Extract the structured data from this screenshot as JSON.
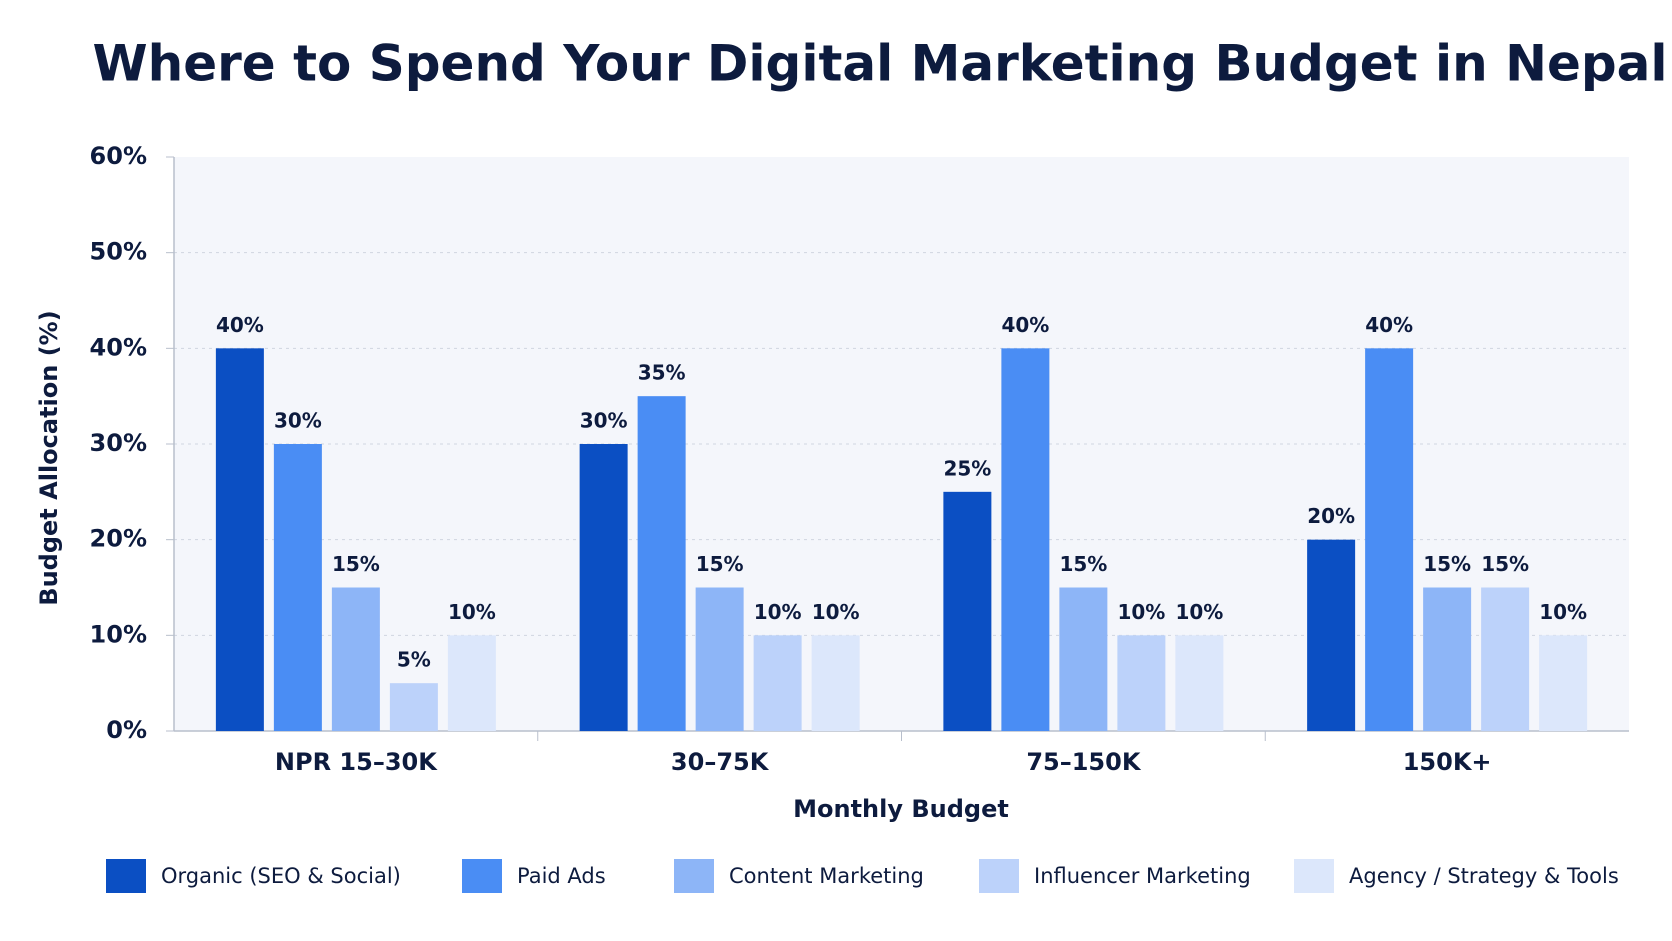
{
  "chart_data": {
    "type": "bar",
    "title": "Where to Spend Your Digital Marketing Budget in Nepal",
    "x_label": "Monthly Budget",
    "y_label": "Budget Allocation (%)",
    "categories": [
      "NPR 15–30K",
      "30–75K",
      "75–150K",
      "150K+"
    ],
    "series": [
      {
        "name": "Organic (SEO & Social)",
        "color": "#0b4fc3",
        "values": [
          40,
          30,
          25,
          20
        ],
        "value_labels": [
          "40%",
          "30%",
          "25%",
          "20%"
        ]
      },
      {
        "name": "Paid Ads",
        "color": "#4a8df4",
        "values": [
          30,
          35,
          40,
          40
        ],
        "value_labels": [
          "30%",
          "35%",
          "40%",
          "40%"
        ]
      },
      {
        "name": "Content Marketing",
        "color": "#8db5f7",
        "values": [
          15,
          15,
          15,
          15
        ],
        "value_labels": [
          "15%",
          "15%",
          "15%",
          "15%"
        ]
      },
      {
        "name": "Influencer Marketing",
        "color": "#bcd2fa",
        "values": [
          5,
          10,
          10,
          15
        ],
        "value_labels": [
          "5%",
          "10%",
          "10%",
          "15%"
        ]
      },
      {
        "name": "Agency / Strategy & Tools",
        "color": "#dce7fb",
        "values": [
          10,
          10,
          10,
          10
        ],
        "value_labels": [
          "10%",
          "10%",
          "10%",
          "10%"
        ]
      }
    ],
    "ylim": [
      0,
      60
    ],
    "yticks": [
      {
        "value": 0,
        "label": "0%"
      },
      {
        "value": 10,
        "label": "10%"
      },
      {
        "value": 20,
        "label": "20%"
      },
      {
        "value": 30,
        "label": "30%"
      },
      {
        "value": 40,
        "label": "40%"
      },
      {
        "value": 50,
        "label": "50%"
      },
      {
        "value": 60,
        "label": "60%"
      }
    ],
    "grid": true,
    "legend": "bottom"
  }
}
